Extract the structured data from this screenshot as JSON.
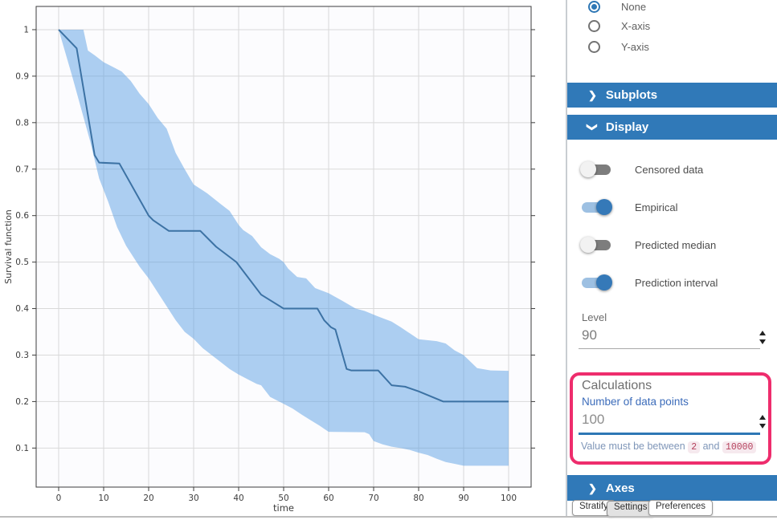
{
  "chart_data": {
    "type": "line",
    "title": "",
    "xlabel": "time",
    "ylabel": "Survival function",
    "xlim": [
      -5,
      105
    ],
    "ylim": [
      0.016,
      1.05
    ],
    "x_ticks": [
      0,
      10,
      20,
      30,
      40,
      50,
      60,
      70,
      80,
      90,
      100
    ],
    "y_tick_values": [
      1,
      0.9,
      0.8,
      0.7,
      0.6,
      0.5,
      0.4,
      0.3,
      0.2,
      0.1
    ],
    "y_tick_labels": [
      "1",
      "0.9",
      "0.8",
      "0.7",
      "0.6",
      "0.5",
      "0.4",
      "0.3",
      "0.2",
      "0.1"
    ],
    "grid": true,
    "legend": "none",
    "colors": {
      "grid": "#d9d9d9",
      "spine": "#3d3d3d",
      "tick_label": "#3d3d3d"
    },
    "series": {
      "empirical_median": {
        "label": "Empirical",
        "color": "#3c72a4",
        "points": [
          [
            0,
            1.0
          ],
          [
            4,
            0.96
          ],
          [
            8,
            0.73
          ],
          [
            9,
            0.714
          ],
          [
            13.5,
            0.712
          ],
          [
            20,
            0.6
          ],
          [
            21,
            0.59
          ],
          [
            24.5,
            0.567
          ],
          [
            31.5,
            0.567
          ],
          [
            35,
            0.533
          ],
          [
            39.5,
            0.5
          ],
          [
            45,
            0.43
          ],
          [
            50,
            0.4
          ],
          [
            57.5,
            0.4
          ],
          [
            59,
            0.375
          ],
          [
            60.5,
            0.36
          ],
          [
            61.5,
            0.355
          ],
          [
            64,
            0.27
          ],
          [
            65,
            0.267
          ],
          [
            71,
            0.267
          ],
          [
            74,
            0.235
          ],
          [
            77,
            0.232
          ],
          [
            80,
            0.222
          ],
          [
            85.5,
            0.2
          ],
          [
            100,
            0.2
          ]
        ]
      },
      "prediction_interval": {
        "label": "Prediction interval",
        "level": "90",
        "fill": "#5b9fe3",
        "fill_opacity": 0.5,
        "upper": [
          [
            0,
            1.0
          ],
          [
            5.5,
            1.0
          ],
          [
            6.5,
            0.955
          ],
          [
            8,
            0.945
          ],
          [
            10,
            0.93
          ],
          [
            12,
            0.92
          ],
          [
            14,
            0.91
          ],
          [
            16,
            0.89
          ],
          [
            18,
            0.862
          ],
          [
            20,
            0.84
          ],
          [
            22,
            0.81
          ],
          [
            24,
            0.787
          ],
          [
            26,
            0.735
          ],
          [
            28,
            0.7
          ],
          [
            30,
            0.667
          ],
          [
            33,
            0.648
          ],
          [
            36,
            0.625
          ],
          [
            38,
            0.61
          ],
          [
            40,
            0.58
          ],
          [
            41,
            0.569
          ],
          [
            43,
            0.556
          ],
          [
            45,
            0.532
          ],
          [
            47,
            0.517
          ],
          [
            49,
            0.507
          ],
          [
            50,
            0.5
          ],
          [
            51,
            0.486
          ],
          [
            53,
            0.468
          ],
          [
            55,
            0.465
          ],
          [
            57,
            0.444
          ],
          [
            60,
            0.433
          ],
          [
            63,
            0.417
          ],
          [
            66,
            0.4
          ],
          [
            68,
            0.395
          ],
          [
            71,
            0.383
          ],
          [
            74,
            0.372
          ],
          [
            76,
            0.36
          ],
          [
            80,
            0.334
          ],
          [
            84,
            0.33
          ],
          [
            86,
            0.325
          ],
          [
            88,
            0.31
          ],
          [
            90,
            0.3
          ],
          [
            93,
            0.272
          ],
          [
            96,
            0.267
          ],
          [
            100,
            0.266
          ]
        ],
        "lower": [
          [
            0,
            1.0
          ],
          [
            3,
            0.9
          ],
          [
            5,
            0.83
          ],
          [
            7,
            0.76
          ],
          [
            9,
            0.68
          ],
          [
            11,
            0.63
          ],
          [
            13,
            0.575
          ],
          [
            15,
            0.535
          ],
          [
            17,
            0.505
          ],
          [
            18,
            0.49
          ],
          [
            20,
            0.465
          ],
          [
            22,
            0.435
          ],
          [
            24,
            0.405
          ],
          [
            26,
            0.375
          ],
          [
            28,
            0.35
          ],
          [
            30,
            0.335
          ],
          [
            32,
            0.315
          ],
          [
            34,
            0.3
          ],
          [
            36,
            0.285
          ],
          [
            38,
            0.27
          ],
          [
            40,
            0.258
          ],
          [
            42,
            0.248
          ],
          [
            44,
            0.238
          ],
          [
            45,
            0.235
          ],
          [
            47,
            0.21
          ],
          [
            48,
            0.205
          ],
          [
            50,
            0.195
          ],
          [
            52,
            0.185
          ],
          [
            54,
            0.172
          ],
          [
            56,
            0.16
          ],
          [
            58,
            0.148
          ],
          [
            60,
            0.135
          ],
          [
            68,
            0.134
          ],
          [
            69,
            0.13
          ],
          [
            70,
            0.115
          ],
          [
            72,
            0.108
          ],
          [
            74,
            0.103
          ],
          [
            76,
            0.1
          ],
          [
            78,
            0.096
          ],
          [
            80,
            0.09
          ],
          [
            82,
            0.085
          ],
          [
            84,
            0.077
          ],
          [
            86,
            0.07
          ],
          [
            88,
            0.066
          ],
          [
            90,
            0.062
          ],
          [
            100,
            0.062
          ]
        ]
      }
    }
  },
  "panel": {
    "radio_options": [
      {
        "label": "None",
        "selected": true
      },
      {
        "label": "X-axis",
        "selected": false
      },
      {
        "label": "Y-axis",
        "selected": false
      }
    ],
    "sections": {
      "subplots": "Subplots",
      "display": "Display",
      "axes": "Axes"
    },
    "toggles": [
      {
        "label": "Censored data",
        "on": false
      },
      {
        "label": "Empirical",
        "on": true
      },
      {
        "label": "Predicted median",
        "on": false
      },
      {
        "label": "Prediction interval",
        "on": true
      }
    ],
    "level": {
      "label": "Level",
      "value": "90"
    },
    "calculations": {
      "title": "Calculations",
      "field_label": "Number of data points",
      "value": "100",
      "validation": {
        "prefix": "Value must be between",
        "min": "2",
        "conjunction": "and",
        "max": "10000"
      }
    },
    "tabs": [
      {
        "label": "Stratify",
        "active": false
      },
      {
        "label": "Settings",
        "active": true
      },
      {
        "label": "Preferences",
        "active": false
      }
    ],
    "colors": {
      "accent_blue": "#3079b8",
      "highlight_pink": "#ee2d6d",
      "link_blue": "#3c6cba"
    }
  }
}
